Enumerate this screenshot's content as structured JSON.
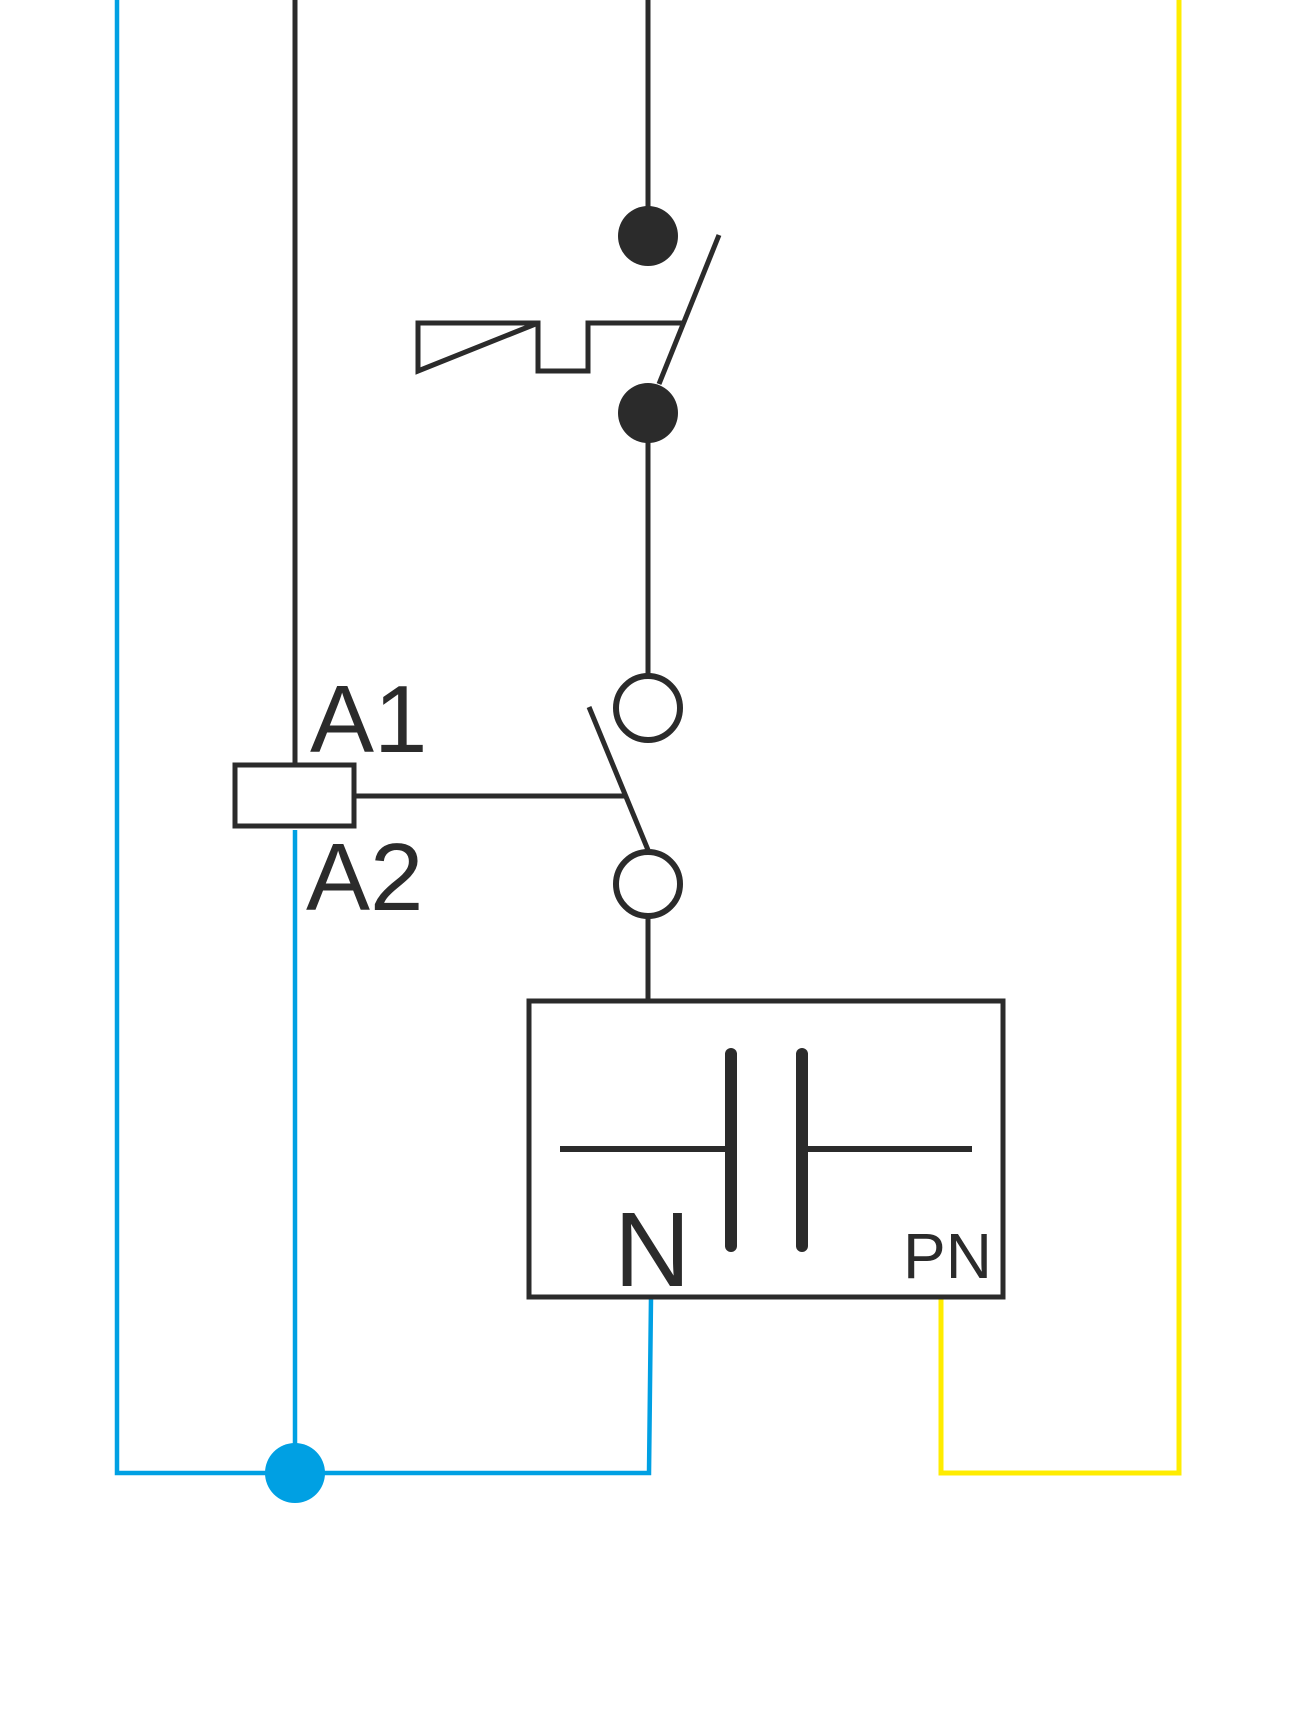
{
  "labels": {
    "a1": "A1",
    "a2": "A2",
    "n": "N",
    "pn": "PN"
  },
  "colors": {
    "dark": "#2b2b2b",
    "neutral_blue": "#00a0e3",
    "pe_yellow": "#ffec00",
    "background": "#ffffff"
  }
}
